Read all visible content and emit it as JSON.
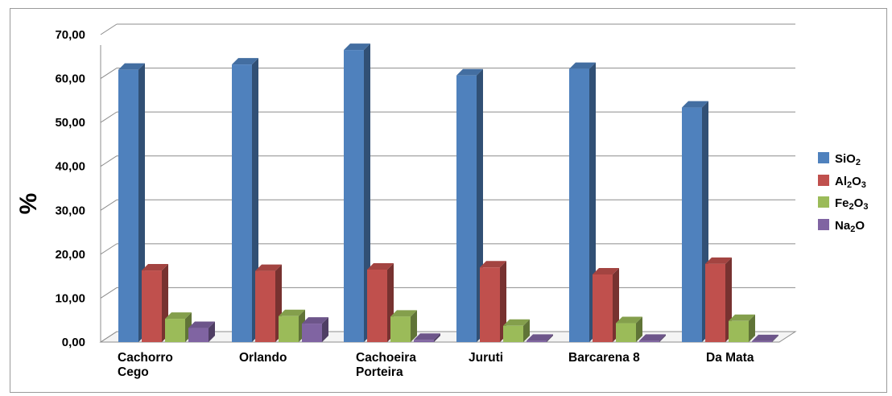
{
  "chart_data": {
    "type": "bar",
    "title": "",
    "xlabel": "",
    "ylabel": "%",
    "ylim": [
      0,
      70
    ],
    "yticks": [
      "0,00",
      "10,00",
      "20,00",
      "30,00",
      "40,00",
      "50,00",
      "60,00",
      "70,00"
    ],
    "grid": true,
    "legend_position": "right",
    "categories": [
      [
        "Cachorro",
        "Cego"
      ],
      [
        "Orlando"
      ],
      [
        "Cachoeira",
        "Porteira"
      ],
      [
        "Juruti"
      ],
      [
        "Barcarena 8"
      ],
      [
        "Da Mata"
      ]
    ],
    "series": [
      {
        "name": "SiO2",
        "label": {
          "base": "SiO",
          "sub": "2",
          "tail": ""
        },
        "color": "#4f81bd",
        "values": [
          62.0,
          63.2,
          66.5,
          60.7,
          62.2,
          53.4
        ]
      },
      {
        "name": "Al2O3",
        "label": {
          "base": "Al",
          "sub": "2",
          "tail": "O",
          "sub2": "3"
        },
        "color": "#c0504d",
        "values": [
          16.3,
          16.2,
          16.5,
          17.0,
          15.4,
          17.8
        ]
      },
      {
        "name": "Fe2O3",
        "label": {
          "base": "Fe",
          "sub": "2",
          "tail": "O",
          "sub2": "3"
        },
        "color": "#9bbb59",
        "values": [
          5.3,
          5.9,
          5.8,
          3.7,
          4.3,
          4.8
        ]
      },
      {
        "name": "Na2O",
        "label": {
          "base": "Na",
          "sub": "2",
          "tail": "O"
        },
        "color": "#8064a2",
        "values": [
          3.2,
          4.2,
          0.5,
          0.3,
          0.3,
          0.2
        ]
      }
    ]
  }
}
